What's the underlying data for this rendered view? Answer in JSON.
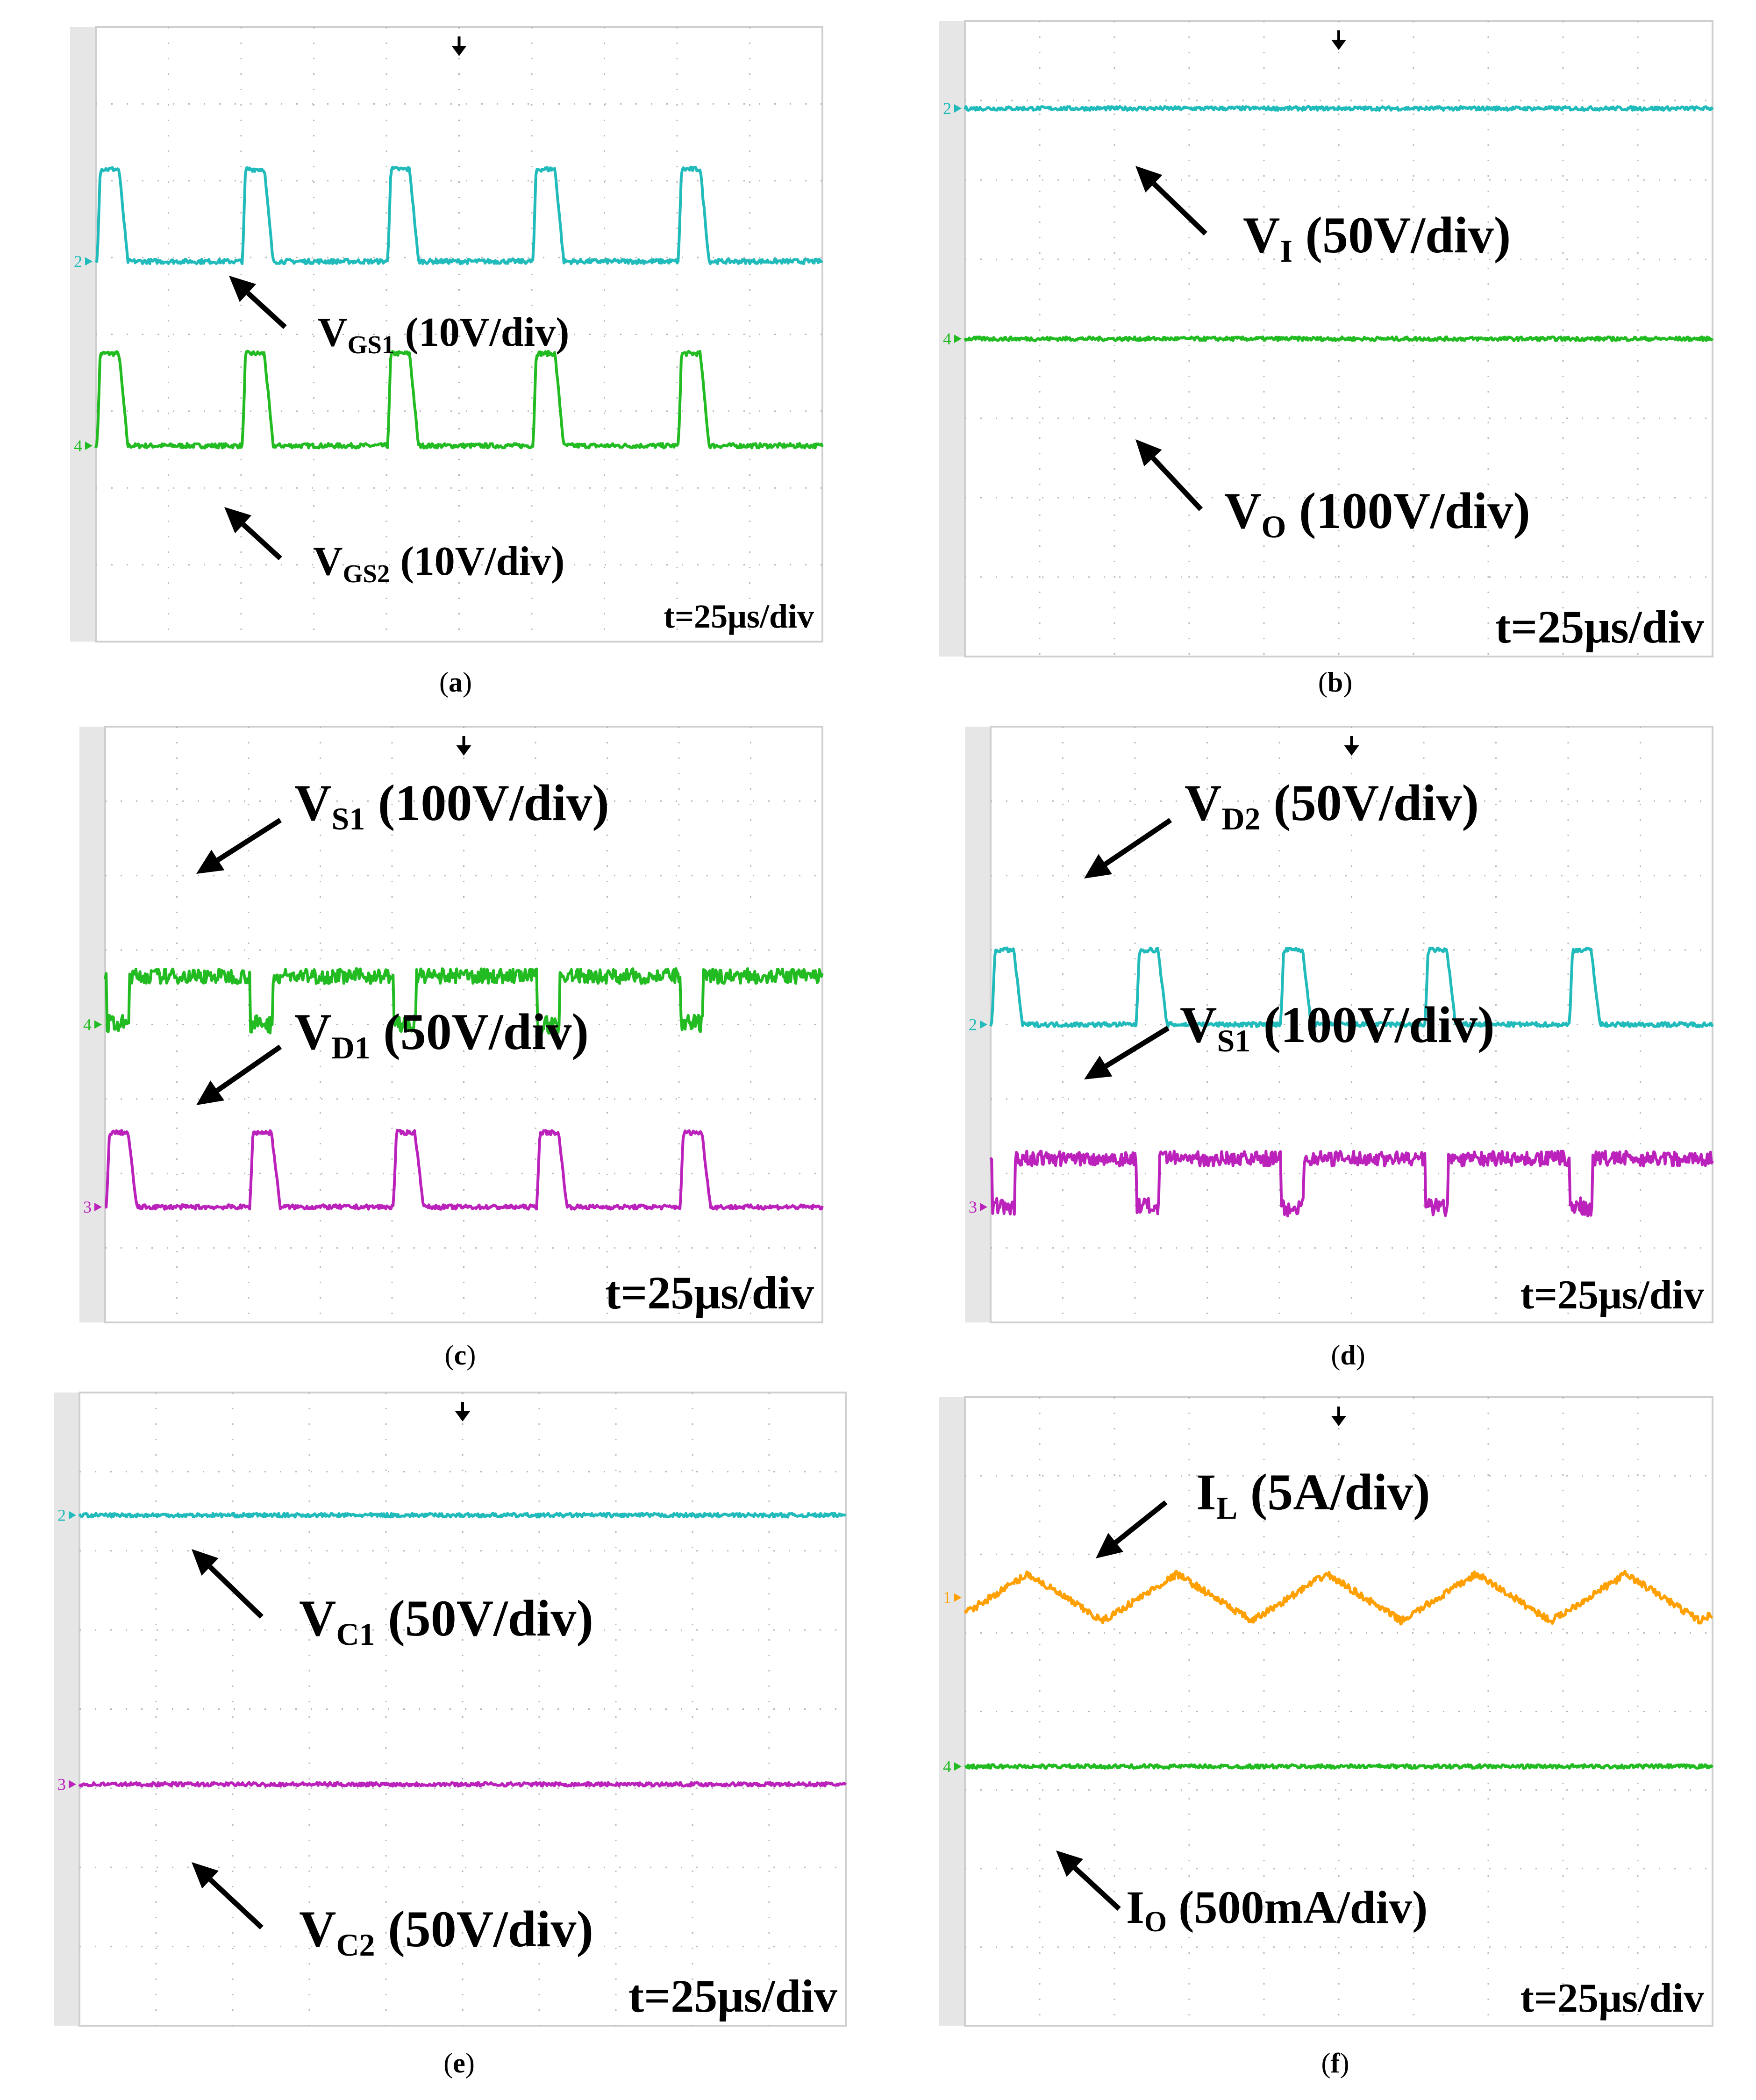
{
  "figure": {
    "panels": [
      {
        "id": "a",
        "caption_letter": "a",
        "timebase": "t=25μs/div",
        "traces": [
          {
            "marker": "4",
            "color": "#22bb22",
            "kind": "pulse",
            "level": 2.55,
            "high": 3.75,
            "edge": "rise-fall"
          },
          {
            "marker": "2",
            "color": "#22bbbb",
            "kind": "pulse",
            "level": 4.95,
            "high": 6.15,
            "edge": "rise-fall"
          }
        ],
        "labels": [
          {
            "main": "V",
            "sub": "GS1",
            "unit": "(10V/div)"
          },
          {
            "main": "V",
            "sub": "GS2",
            "unit": "(10V/div)"
          }
        ]
      },
      {
        "id": "b",
        "caption_letter": "b",
        "timebase": "t=25μs/div",
        "traces": [
          {
            "marker": "2",
            "color": "#22bbbb",
            "kind": "flat",
            "level": 6.9
          },
          {
            "marker": "4",
            "color": "#22bb22",
            "kind": "flat",
            "level": 4.0
          }
        ],
        "labels": [
          {
            "main": "V",
            "sub": "I",
            "unit": "(50V/div)"
          },
          {
            "main": "V",
            "sub": "O",
            "unit": "(100V/div)"
          }
        ]
      },
      {
        "id": "c",
        "caption_letter": "c",
        "timebase": "t=25μs/div",
        "traces": [
          {
            "marker": "4",
            "color": "#22bb22",
            "kind": "notch",
            "level": 4.65,
            "low": 4.0
          },
          {
            "marker": "3",
            "color": "#bb22bb",
            "kind": "pulse",
            "level": 1.55,
            "high": 2.55
          }
        ],
        "labels": [
          {
            "main": "V",
            "sub": "S1",
            "unit": "(100V/div)"
          },
          {
            "main": "V",
            "sub": "D1",
            "unit": "(50V/div)"
          }
        ]
      },
      {
        "id": "d",
        "caption_letter": "d",
        "timebase": "t=25μs/div",
        "traces": [
          {
            "marker": "2",
            "color": "#22bbbb",
            "kind": "pulse",
            "level": 4.0,
            "high": 5.0
          },
          {
            "marker": "3",
            "color": "#bb22bb",
            "kind": "notch",
            "level": 2.2,
            "low": 1.55
          }
        ],
        "labels": [
          {
            "main": "V",
            "sub": "D2",
            "unit": "(50V/div)"
          },
          {
            "main": "V",
            "sub": "S1",
            "unit": "(100V/div)"
          }
        ]
      },
      {
        "id": "e",
        "caption_letter": "e",
        "timebase": "t=25μs/div",
        "traces": [
          {
            "marker": "2",
            "color": "#22bbbb",
            "kind": "flat",
            "level": 6.45
          },
          {
            "marker": "3",
            "color": "#bb22bb",
            "kind": "flat",
            "level": 3.05
          }
        ],
        "labels": [
          {
            "main": "V",
            "sub": "C1",
            "unit": "(50V/div)"
          },
          {
            "main": "V",
            "sub": "C2",
            "unit": "(50V/div)"
          }
        ]
      },
      {
        "id": "f",
        "caption_letter": "f",
        "timebase": "t=25μs/div",
        "traces": [
          {
            "marker": "1",
            "color": "#ffa000",
            "kind": "triangle",
            "level": 5.45,
            "amp": 0.3
          },
          {
            "marker": "4",
            "color": "#22bb22",
            "kind": "flat",
            "level": 3.3
          }
        ],
        "labels": [
          {
            "main": "I",
            "sub": "L",
            "unit": "(5A/div)"
          },
          {
            "main": "I",
            "sub": "O",
            "unit": "(500mA/div)"
          }
        ]
      }
    ]
  },
  "chart_data": [
    {
      "type": "line",
      "title": "(a)",
      "xlabel": "t=25μs/div",
      "time_per_div_us": 25,
      "x_divisions": 10,
      "y_divisions": 8,
      "series": [
        {
          "name": "VGS1 (10V/div)",
          "channel": "4",
          "values_div": {
            "low": 2.55,
            "high": 3.75
          },
          "pulses": 5
        },
        {
          "name": "VGS2 (10V/div)",
          "channel": "2",
          "values_div": {
            "low": 4.95,
            "high": 6.15
          },
          "pulses": 5
        }
      ]
    },
    {
      "type": "line",
      "title": "(b)",
      "xlabel": "t=25μs/div",
      "time_per_div_us": 25,
      "x_divisions": 10,
      "y_divisions": 8,
      "series": [
        {
          "name": "VI (50V/div)",
          "channel": "2",
          "values_div": {
            "dc": 6.9
          }
        },
        {
          "name": "VO (100V/div)",
          "channel": "4",
          "values_div": {
            "dc": 4.0
          }
        }
      ]
    },
    {
      "type": "line",
      "title": "(c)",
      "xlabel": "t=25μs/div",
      "time_per_div_us": 25,
      "x_divisions": 10,
      "y_divisions": 8,
      "series": [
        {
          "name": "VS1 (100V/div)",
          "channel": "4",
          "values_div": {
            "high": 4.65,
            "low": 4.0
          },
          "pulses": 5
        },
        {
          "name": "VD1 (50V/div)",
          "channel": "3",
          "values_div": {
            "low": 1.55,
            "high": 2.55
          },
          "pulses": 5
        }
      ]
    },
    {
      "type": "line",
      "title": "(d)",
      "xlabel": "t=25μs/div",
      "time_per_div_us": 25,
      "x_divisions": 10,
      "y_divisions": 8,
      "series": [
        {
          "name": "VD2 (50V/div)",
          "channel": "2",
          "values_div": {
            "low": 4.0,
            "high": 5.0
          },
          "pulses": 5
        },
        {
          "name": "VS1 (100V/div)",
          "channel": "3",
          "values_div": {
            "high": 2.2,
            "low": 1.55
          },
          "pulses": 5
        }
      ]
    },
    {
      "type": "line",
      "title": "(e)",
      "xlabel": "t=25μs/div",
      "time_per_div_us": 25,
      "x_divisions": 10,
      "y_divisions": 8,
      "series": [
        {
          "name": "VC1 (50V/div)",
          "channel": "2",
          "values_div": {
            "dc": 6.45
          }
        },
        {
          "name": "VC2 (50V/div)",
          "channel": "3",
          "values_div": {
            "dc": 3.05
          }
        }
      ]
    },
    {
      "type": "line",
      "title": "(f)",
      "xlabel": "t=25μs/div",
      "time_per_div_us": 25,
      "x_divisions": 10,
      "y_divisions": 8,
      "series": [
        {
          "name": "IL (5A/div)",
          "channel": "1",
          "values_div": {
            "mean": 5.45,
            "ripple_amplitude": 0.3
          },
          "periods": 5
        },
        {
          "name": "IO (500mA/div)",
          "channel": "4",
          "values_div": {
            "dc": 3.3
          }
        }
      ]
    }
  ]
}
